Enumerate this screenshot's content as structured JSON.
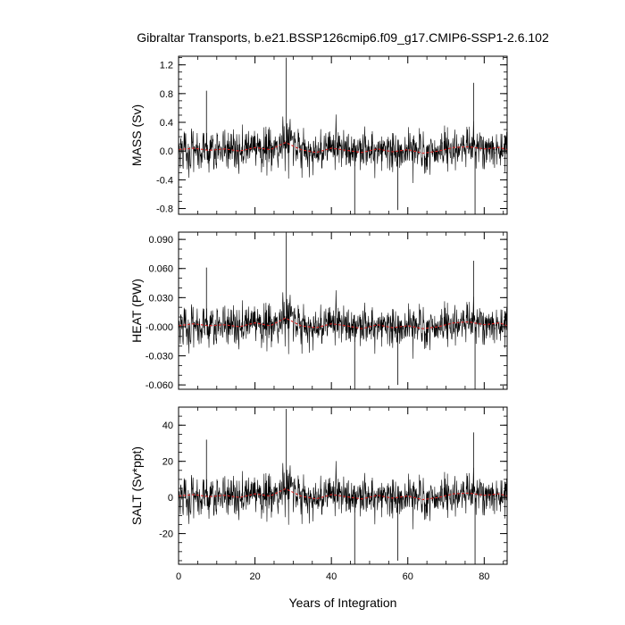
{
  "chart_data": {
    "type": "line",
    "title": "Gibraltar Transports, b.e21.BSSP126cmip6.f09_g17.CMIP6-SSP1-2.6.102",
    "xlabel": "Years of Integration",
    "xlim": [
      0,
      86
    ],
    "xticks": [
      0,
      20,
      40,
      60,
      80
    ],
    "xtick_labels": [
      "0",
      "20",
      "40",
      "60",
      "80"
    ],
    "grid": false,
    "legend": "none",
    "series_colors": {
      "monthly": "#000000",
      "smoothed": "#d62020"
    },
    "panels": [
      {
        "key": "mass",
        "ylabel": "MASS (Sv)",
        "ylim": [
          -0.88,
          1.32
        ],
        "yticks": [
          1.2,
          0.8,
          0.4,
          0.0,
          -0.4,
          -0.8
        ],
        "ytick_labels": [
          "1.2",
          "0.8",
          "0.4",
          "0.0",
          "-0.4",
          "-0.8"
        ],
        "minor_step": 0.1,
        "spikes": [
          {
            "x": 28.2,
            "y": 1.3
          },
          {
            "x": 77.2,
            "y": 0.95
          },
          {
            "x": 7.3,
            "y": 0.84
          },
          {
            "x": 46.1,
            "y": -0.88
          },
          {
            "x": 77.6,
            "y": -0.88
          },
          {
            "x": 57.4,
            "y": -0.82
          }
        ],
        "smoothed": [
          {
            "x": 0,
            "y": 0.02
          },
          {
            "x": 4,
            "y": 0.04
          },
          {
            "x": 8,
            "y": 0.01
          },
          {
            "x": 12,
            "y": 0.03
          },
          {
            "x": 16,
            "y": 0.0
          },
          {
            "x": 20,
            "y": 0.05
          },
          {
            "x": 24,
            "y": 0.02
          },
          {
            "x": 28,
            "y": 0.12
          },
          {
            "x": 32,
            "y": 0.02
          },
          {
            "x": 36,
            "y": -0.02
          },
          {
            "x": 40,
            "y": 0.04
          },
          {
            "x": 44,
            "y": 0.01
          },
          {
            "x": 48,
            "y": -0.02
          },
          {
            "x": 52,
            "y": 0.03
          },
          {
            "x": 56,
            "y": -0.01
          },
          {
            "x": 60,
            "y": 0.02
          },
          {
            "x": 64,
            "y": -0.03
          },
          {
            "x": 68,
            "y": 0.0
          },
          {
            "x": 72,
            "y": 0.05
          },
          {
            "x": 76,
            "y": 0.06
          },
          {
            "x": 80,
            "y": 0.03
          },
          {
            "x": 84,
            "y": 0.05
          },
          {
            "x": 86,
            "y": 0.02
          }
        ]
      },
      {
        "key": "heat",
        "ylabel": "HEAT (PW)",
        "ylim": [
          -0.0645,
          0.0975
        ],
        "yticks": [
          0.09,
          0.06,
          0.03,
          0.0,
          -0.03,
          -0.06
        ],
        "ytick_labels": [
          "0.090",
          "0.060",
          "0.030",
          "-0.000",
          "-0.030",
          "-0.060"
        ],
        "minor_step": 0.01,
        "spikes": [
          {
            "x": 28.2,
            "y": 0.097
          },
          {
            "x": 77.2,
            "y": 0.068
          },
          {
            "x": 7.3,
            "y": 0.061
          },
          {
            "x": 46.1,
            "y": -0.0645
          },
          {
            "x": 77.6,
            "y": -0.0645
          },
          {
            "x": 57.4,
            "y": -0.06
          }
        ],
        "smoothed": [
          {
            "x": 0,
            "y": 0.001
          },
          {
            "x": 4,
            "y": 0.003
          },
          {
            "x": 8,
            "y": 0.001
          },
          {
            "x": 12,
            "y": 0.002
          },
          {
            "x": 16,
            "y": 0.0
          },
          {
            "x": 20,
            "y": 0.004
          },
          {
            "x": 24,
            "y": 0.001
          },
          {
            "x": 28,
            "y": 0.009
          },
          {
            "x": 32,
            "y": 0.001
          },
          {
            "x": 36,
            "y": -0.001
          },
          {
            "x": 40,
            "y": 0.003
          },
          {
            "x": 44,
            "y": 0.001
          },
          {
            "x": 48,
            "y": -0.002
          },
          {
            "x": 52,
            "y": 0.002
          },
          {
            "x": 56,
            "y": -0.001
          },
          {
            "x": 60,
            "y": 0.001
          },
          {
            "x": 64,
            "y": -0.002
          },
          {
            "x": 68,
            "y": 0.0
          },
          {
            "x": 72,
            "y": 0.004
          },
          {
            "x": 76,
            "y": 0.005
          },
          {
            "x": 80,
            "y": 0.002
          },
          {
            "x": 84,
            "y": 0.004
          },
          {
            "x": 86,
            "y": 0.001
          }
        ]
      },
      {
        "key": "salt",
        "ylabel": "SALT (Sv*ppt)",
        "ylim": [
          -37,
          50
        ],
        "yticks": [
          40,
          20,
          0,
          -20
        ],
        "ytick_labels": [
          "40",
          "20",
          "0",
          "-20"
        ],
        "minor_step": 5,
        "spikes": [
          {
            "x": 28.2,
            "y": 49
          },
          {
            "x": 77.2,
            "y": 36
          },
          {
            "x": 7.3,
            "y": 32
          },
          {
            "x": 46.1,
            "y": -37
          },
          {
            "x": 77.6,
            "y": -37
          },
          {
            "x": 57.4,
            "y": -35
          }
        ],
        "smoothed": [
          {
            "x": 0,
            "y": 0.8
          },
          {
            "x": 4,
            "y": 1.6
          },
          {
            "x": 8,
            "y": 0.4
          },
          {
            "x": 12,
            "y": 1.2
          },
          {
            "x": 16,
            "y": 0.0
          },
          {
            "x": 20,
            "y": 2.0
          },
          {
            "x": 24,
            "y": 0.8
          },
          {
            "x": 28,
            "y": 4.8
          },
          {
            "x": 32,
            "y": 0.8
          },
          {
            "x": 36,
            "y": -0.8
          },
          {
            "x": 40,
            "y": 1.6
          },
          {
            "x": 44,
            "y": 0.4
          },
          {
            "x": 48,
            "y": -0.8
          },
          {
            "x": 52,
            "y": 1.2
          },
          {
            "x": 56,
            "y": -0.4
          },
          {
            "x": 60,
            "y": 0.8
          },
          {
            "x": 64,
            "y": -1.2
          },
          {
            "x": 68,
            "y": 0.0
          },
          {
            "x": 72,
            "y": 2.0
          },
          {
            "x": 76,
            "y": 2.4
          },
          {
            "x": 80,
            "y": 1.2
          },
          {
            "x": 84,
            "y": 2.0
          },
          {
            "x": 86,
            "y": 0.8
          }
        ]
      }
    ]
  }
}
